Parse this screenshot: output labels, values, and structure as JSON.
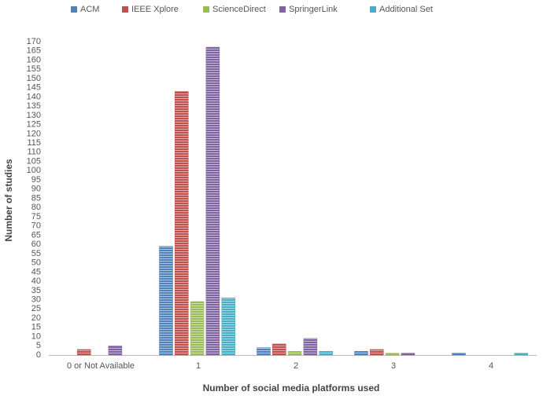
{
  "chart_data": {
    "type": "bar",
    "x_label": "Number of social media platforms used",
    "y_label": "Number of studies",
    "categories": [
      "0 or Not Available",
      "1",
      "2",
      "3",
      "4"
    ],
    "series": [
      {
        "name": "ACM",
        "color": "#4f81bd",
        "values": [
          0,
          59,
          4,
          2,
          1
        ]
      },
      {
        "name": "IEEE Xplore",
        "color": "#c0504d",
        "values": [
          3,
          143,
          6,
          3,
          0
        ]
      },
      {
        "name": "ScienceDirect",
        "color": "#9bbb59",
        "values": [
          0,
          29,
          2,
          1,
          0
        ]
      },
      {
        "name": "SpringerLink",
        "color": "#8064a2",
        "values": [
          5,
          167,
          9,
          1,
          0
        ]
      },
      {
        "name": "Additional Set",
        "color": "#4bacc6",
        "values": [
          0,
          31,
          2,
          0,
          1
        ]
      }
    ],
    "ylim": [
      0,
      170
    ],
    "yticks": [
      0,
      5,
      10,
      15,
      20,
      25,
      30,
      35,
      40,
      45,
      50,
      55,
      60,
      65,
      70,
      75,
      80,
      85,
      90,
      95,
      100,
      105,
      110,
      115,
      120,
      125,
      130,
      135,
      140,
      145,
      150,
      155,
      160,
      165,
      170
    ],
    "legend": "top",
    "grid": false
  }
}
